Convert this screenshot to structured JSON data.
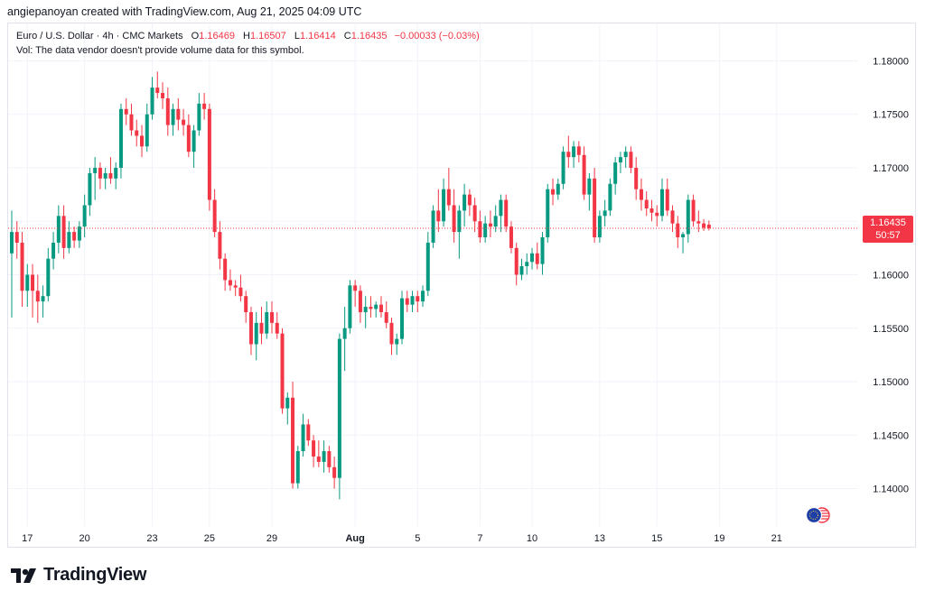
{
  "header": {
    "credit": "angiepanoyan created with TradingView.com, Aug 21, 2025 04:09 UTC"
  },
  "legend": {
    "symbol": "Euro / U.S. Dollar · 4h · CMC Markets",
    "o_label": "O",
    "o_value": "1.16469",
    "h_label": "H",
    "h_value": "1.16507",
    "l_label": "L",
    "l_value": "1.16414",
    "c_label": "C",
    "c_value": "1.16435",
    "change": "−0.00033 (−0.03%)",
    "vol_note": "Vol: The data vendor doesn't provide volume data for this symbol."
  },
  "price_tag": {
    "price": "1.16435",
    "countdown": "50:57"
  },
  "brand": {
    "name": "TradingView"
  },
  "colors": {
    "up": "#089981",
    "down": "#f23645",
    "grid": "#f0f3fa",
    "text": "#131722"
  },
  "chart_data": {
    "type": "candlestick",
    "title": "Euro / U.S. Dollar · 4h · CMC Markets",
    "ylim": [
      1.1365,
      1.1835
    ],
    "y_ticks": [
      "1.18000",
      "1.17500",
      "1.17000",
      "1.16500",
      "1.16000",
      "1.15500",
      "1.15000",
      "1.14500",
      "1.14000"
    ],
    "x_ticks": [
      {
        "label": "17",
        "i": 3
      },
      {
        "label": "20",
        "i": 14
      },
      {
        "label": "23",
        "i": 27
      },
      {
        "label": "25",
        "i": 38
      },
      {
        "label": "29",
        "i": 50
      },
      {
        "label": "Aug",
        "i": 66
      },
      {
        "label": "5",
        "i": 78
      },
      {
        "label": "7",
        "i": 90
      },
      {
        "label": "10",
        "i": 100
      },
      {
        "label": "13",
        "i": 113
      },
      {
        "label": "15",
        "i": 124
      },
      {
        "label": "19",
        "i": 136
      },
      {
        "label": "21",
        "i": 147
      }
    ],
    "current_price": 1.16435,
    "candles": [
      [
        1.162,
        1.166,
        1.156,
        1.164
      ],
      [
        1.164,
        1.165,
        1.1615,
        1.163
      ],
      [
        1.163,
        1.164,
        1.157,
        1.1585
      ],
      [
        1.1585,
        1.161,
        1.157,
        1.16
      ],
      [
        1.16,
        1.161,
        1.156,
        1.1585
      ],
      [
        1.1585,
        1.16,
        1.1555,
        1.1575
      ],
      [
        1.1575,
        1.159,
        1.156,
        1.158
      ],
      [
        1.158,
        1.1625,
        1.1575,
        1.1615
      ],
      [
        1.1615,
        1.164,
        1.1605,
        1.163
      ],
      [
        1.163,
        1.1665,
        1.162,
        1.1655
      ],
      [
        1.1655,
        1.1665,
        1.1615,
        1.1625
      ],
      [
        1.1625,
        1.165,
        1.162,
        1.164
      ],
      [
        1.164,
        1.1645,
        1.1625,
        1.1632
      ],
      [
        1.1632,
        1.165,
        1.1625,
        1.1645
      ],
      [
        1.1645,
        1.1675,
        1.1635,
        1.1665
      ],
      [
        1.1665,
        1.17,
        1.1655,
        1.1695
      ],
      [
        1.1695,
        1.171,
        1.167,
        1.17
      ],
      [
        1.17,
        1.1705,
        1.168,
        1.169
      ],
      [
        1.169,
        1.17,
        1.168,
        1.1695
      ],
      [
        1.1695,
        1.171,
        1.1685,
        1.169
      ],
      [
        1.169,
        1.1705,
        1.168,
        1.17
      ],
      [
        1.17,
        1.176,
        1.169,
        1.1755
      ],
      [
        1.1755,
        1.1765,
        1.174,
        1.175
      ],
      [
        1.175,
        1.176,
        1.173,
        1.1735
      ],
      [
        1.1735,
        1.1745,
        1.172,
        1.173
      ],
      [
        1.173,
        1.174,
        1.171,
        1.172
      ],
      [
        1.172,
        1.176,
        1.1715,
        1.175
      ],
      [
        1.175,
        1.1785,
        1.1745,
        1.1775
      ],
      [
        1.1775,
        1.179,
        1.1765,
        1.177
      ],
      [
        1.177,
        1.178,
        1.1755,
        1.1765
      ],
      [
        1.1765,
        1.1775,
        1.173,
        1.174
      ],
      [
        1.174,
        1.176,
        1.173,
        1.1755
      ],
      [
        1.1755,
        1.1765,
        1.1735,
        1.1745
      ],
      [
        1.1745,
        1.1755,
        1.173,
        1.174
      ],
      [
        1.174,
        1.175,
        1.171,
        1.1715
      ],
      [
        1.1715,
        1.174,
        1.17,
        1.1735
      ],
      [
        1.1735,
        1.177,
        1.173,
        1.176
      ],
      [
        1.176,
        1.177,
        1.1745,
        1.1755
      ],
      [
        1.1755,
        1.176,
        1.166,
        1.167
      ],
      [
        1.167,
        1.168,
        1.1635,
        1.164
      ],
      [
        1.164,
        1.165,
        1.1605,
        1.1615
      ],
      [
        1.1615,
        1.162,
        1.1585,
        1.1595
      ],
      [
        1.1595,
        1.1605,
        1.1585,
        1.159
      ],
      [
        1.159,
        1.1595,
        1.158,
        1.1588
      ],
      [
        1.1588,
        1.16,
        1.1575,
        1.158
      ],
      [
        1.158,
        1.1585,
        1.1555,
        1.1565
      ],
      [
        1.1565,
        1.157,
        1.1525,
        1.1535
      ],
      [
        1.1535,
        1.1565,
        1.152,
        1.1555
      ],
      [
        1.1555,
        1.157,
        1.1535,
        1.1545
      ],
      [
        1.1545,
        1.1575,
        1.154,
        1.1565
      ],
      [
        1.1565,
        1.1575,
        1.1545,
        1.1555
      ],
      [
        1.1555,
        1.1565,
        1.154,
        1.1545
      ],
      [
        1.1545,
        1.155,
        1.147,
        1.1475
      ],
      [
        1.1475,
        1.149,
        1.146,
        1.1485
      ],
      [
        1.1485,
        1.15,
        1.14,
        1.1405
      ],
      [
        1.1405,
        1.144,
        1.14,
        1.1435
      ],
      [
        1.1435,
        1.147,
        1.143,
        1.146
      ],
      [
        1.146,
        1.1465,
        1.144,
        1.1445
      ],
      [
        1.1445,
        1.145,
        1.142,
        1.143
      ],
      [
        1.143,
        1.1445,
        1.142,
        1.1425
      ],
      [
        1.1425,
        1.1445,
        1.1415,
        1.1435
      ],
      [
        1.1435,
        1.144,
        1.1415,
        1.142
      ],
      [
        1.142,
        1.143,
        1.14,
        1.141
      ],
      [
        1.141,
        1.1545,
        1.139,
        1.154
      ],
      [
        1.154,
        1.157,
        1.151,
        1.155
      ],
      [
        1.155,
        1.1595,
        1.1545,
        1.159
      ],
      [
        1.159,
        1.1595,
        1.157,
        1.1585
      ],
      [
        1.1585,
        1.159,
        1.1555,
        1.1565
      ],
      [
        1.1565,
        1.158,
        1.155,
        1.157
      ],
      [
        1.157,
        1.158,
        1.156,
        1.1568
      ],
      [
        1.1568,
        1.1575,
        1.156,
        1.1572
      ],
      [
        1.1572,
        1.158,
        1.156,
        1.1565
      ],
      [
        1.1565,
        1.1575,
        1.155,
        1.1555
      ],
      [
        1.1555,
        1.156,
        1.1525,
        1.1535
      ],
      [
        1.1535,
        1.1545,
        1.1525,
        1.154
      ],
      [
        1.154,
        1.1585,
        1.1535,
        1.1578
      ],
      [
        1.1578,
        1.1585,
        1.1565,
        1.1572
      ],
      [
        1.1572,
        1.1585,
        1.1565,
        1.158
      ],
      [
        1.158,
        1.1585,
        1.1565,
        1.1575
      ],
      [
        1.1575,
        1.159,
        1.157,
        1.1585
      ],
      [
        1.1585,
        1.164,
        1.158,
        1.163
      ],
      [
        1.163,
        1.1665,
        1.1625,
        1.166
      ],
      [
        1.166,
        1.168,
        1.164,
        1.165
      ],
      [
        1.165,
        1.169,
        1.1645,
        1.168
      ],
      [
        1.168,
        1.17,
        1.166,
        1.1665
      ],
      [
        1.1665,
        1.168,
        1.163,
        1.164
      ],
      [
        1.164,
        1.1665,
        1.1615,
        1.166
      ],
      [
        1.166,
        1.1685,
        1.1645,
        1.1675
      ],
      [
        1.1675,
        1.168,
        1.1655,
        1.1665
      ],
      [
        1.1665,
        1.1672,
        1.164,
        1.165
      ],
      [
        1.165,
        1.166,
        1.163,
        1.1635
      ],
      [
        1.1635,
        1.1655,
        1.163,
        1.1648
      ],
      [
        1.1648,
        1.166,
        1.1635,
        1.1645
      ],
      [
        1.1645,
        1.1665,
        1.164,
        1.1655
      ],
      [
        1.1655,
        1.1675,
        1.164,
        1.167
      ],
      [
        1.167,
        1.1675,
        1.164,
        1.1645
      ],
      [
        1.1645,
        1.165,
        1.162,
        1.1625
      ],
      [
        1.1625,
        1.163,
        1.159,
        1.16
      ],
      [
        1.16,
        1.1615,
        1.1595,
        1.1608
      ],
      [
        1.1608,
        1.162,
        1.16,
        1.1612
      ],
      [
        1.1612,
        1.1625,
        1.1605,
        1.162
      ],
      [
        1.162,
        1.163,
        1.1605,
        1.161
      ],
      [
        1.161,
        1.164,
        1.16,
        1.1635
      ],
      [
        1.1635,
        1.1685,
        1.163,
        1.168
      ],
      [
        1.168,
        1.169,
        1.1665,
        1.1675
      ],
      [
        1.1675,
        1.169,
        1.167,
        1.1685
      ],
      [
        1.1685,
        1.172,
        1.168,
        1.1715
      ],
      [
        1.1715,
        1.173,
        1.17,
        1.171
      ],
      [
        1.171,
        1.1725,
        1.17,
        1.172
      ],
      [
        1.172,
        1.1725,
        1.1705,
        1.1712
      ],
      [
        1.1712,
        1.172,
        1.167,
        1.1675
      ],
      [
        1.1675,
        1.1695,
        1.166,
        1.169
      ],
      [
        1.169,
        1.17,
        1.163,
        1.1635
      ],
      [
        1.1635,
        1.166,
        1.163,
        1.1655
      ],
      [
        1.1655,
        1.167,
        1.1645,
        1.166
      ],
      [
        1.166,
        1.169,
        1.1655,
        1.1685
      ],
      [
        1.1685,
        1.171,
        1.1675,
        1.1705
      ],
      [
        1.1705,
        1.1715,
        1.1695,
        1.171
      ],
      [
        1.171,
        1.172,
        1.17,
        1.1715
      ],
      [
        1.1715,
        1.172,
        1.1695,
        1.17
      ],
      [
        1.17,
        1.171,
        1.167,
        1.168
      ],
      [
        1.168,
        1.169,
        1.166,
        1.167
      ],
      [
        1.167,
        1.1678,
        1.1655,
        1.1662
      ],
      [
        1.1662,
        1.167,
        1.165,
        1.1658
      ],
      [
        1.1658,
        1.1665,
        1.1645,
        1.1655
      ],
      [
        1.1655,
        1.169,
        1.165,
        1.168
      ],
      [
        1.168,
        1.169,
        1.1655,
        1.166
      ],
      [
        1.166,
        1.1665,
        1.164,
        1.1648
      ],
      [
        1.1648,
        1.1655,
        1.1625,
        1.1635
      ],
      [
        1.1635,
        1.164,
        1.162,
        1.1638
      ],
      [
        1.1638,
        1.1675,
        1.163,
        1.167
      ],
      [
        1.167,
        1.1675,
        1.1645,
        1.165
      ],
      [
        1.165,
        1.166,
        1.164,
        1.1648
      ],
      [
        1.1648,
        1.1652,
        1.1641,
        1.1644
      ],
      [
        1.16469,
        1.16507,
        1.16414,
        1.16435
      ]
    ]
  }
}
